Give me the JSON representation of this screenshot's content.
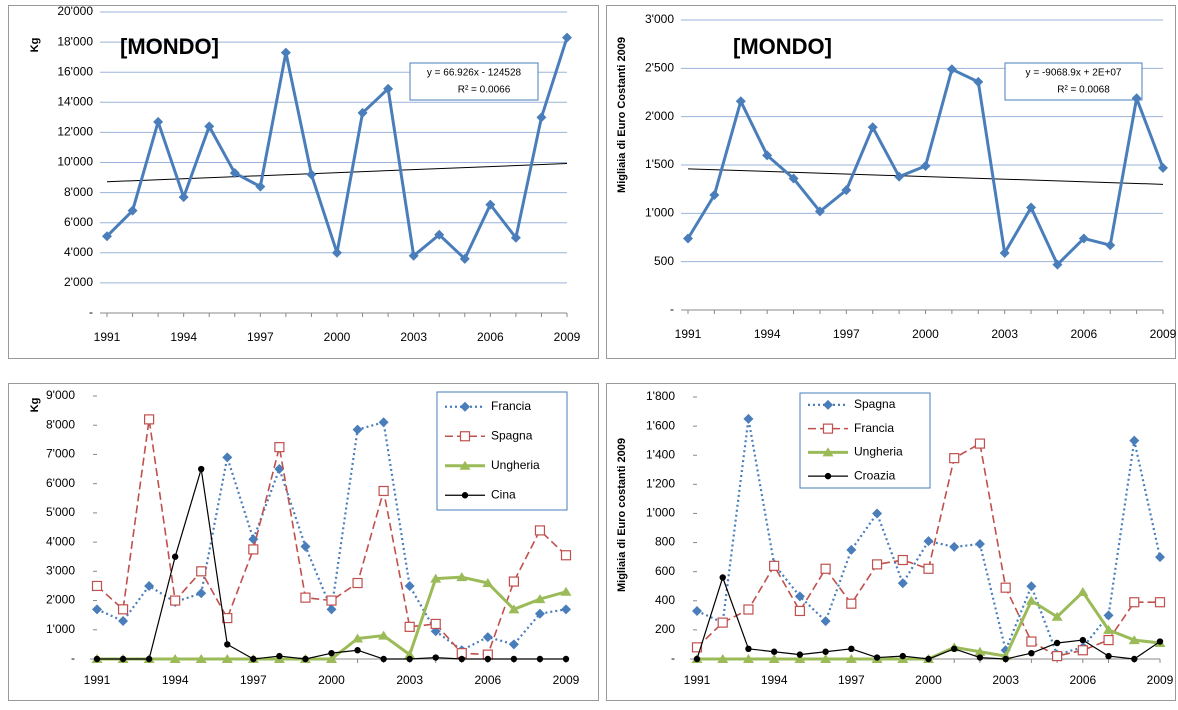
{
  "chart_data": [
    {
      "type": "line",
      "annotation": "[MONDO]",
      "y_label": "Kg",
      "categories": [
        "1991",
        null,
        null,
        "1994",
        null,
        null,
        "1997",
        null,
        null,
        "2000",
        null,
        null,
        "2003",
        null,
        null,
        "2006",
        null,
        null,
        "2009"
      ],
      "series": [
        {
          "color": "#4a7ebb",
          "marker": "diamond",
          "dash": "solid",
          "values": [
            5100,
            6800,
            12700,
            7700,
            12400,
            9300,
            8400,
            17300,
            9200,
            4000,
            13300,
            14900,
            3800,
            5200,
            3600,
            7200,
            5000,
            13000,
            18300
          ]
        }
      ],
      "trendline": {
        "label": "y = 66.926x - 124528",
        "r2_label": "R² = 0.0066",
        "start": 8720,
        "end": 9930
      },
      "ylim": [
        0,
        20000
      ],
      "yticks": [
        {
          "value": 0,
          "label": "-"
        },
        {
          "value": 2000,
          "label": "2'000"
        },
        {
          "value": 4000,
          "label": "4'000"
        },
        {
          "value": 6000,
          "label": "6'000"
        },
        {
          "value": 8000,
          "label": "8'000"
        },
        {
          "value": 10000,
          "label": "10'000"
        },
        {
          "value": 12000,
          "label": "12'000"
        },
        {
          "value": 14000,
          "label": "14'000"
        },
        {
          "value": 16000,
          "label": "16'000"
        },
        {
          "value": 18000,
          "label": "18'000"
        },
        {
          "value": 20000,
          "label": "20'000"
        }
      ],
      "grid": true
    },
    {
      "type": "line",
      "annotation": "[MONDO]",
      "y_label": "Migliaia  di Euro Costanti 2009",
      "categories": [
        "1991",
        null,
        null,
        "1994",
        null,
        null,
        "1997",
        null,
        null,
        "2000",
        null,
        null,
        "2003",
        null,
        null,
        "2006",
        null,
        null,
        "2009"
      ],
      "series": [
        {
          "color": "#4a7ebb",
          "marker": "diamond",
          "dash": "solid",
          "values": [
            740,
            1190,
            2160,
            1600,
            1360,
            1020,
            1240,
            1890,
            1380,
            1490,
            2490,
            2360,
            590,
            1060,
            470,
            740,
            670,
            2190,
            1470
          ]
        }
      ],
      "trendline": {
        "label": "y = -9068.9x + 2E+07",
        "r2_label": "R² = 0.0068",
        "start": 1460,
        "end": 1300
      },
      "ylim": [
        0,
        3000
      ],
      "yticks": [
        {
          "value": 0,
          "label": "-"
        },
        500,
        {
          "value": 1000,
          "label": "1'000"
        },
        {
          "value": 1500,
          "label": "1'500"
        },
        {
          "value": 2000,
          "label": "2'000"
        },
        {
          "value": 2500,
          "label": "2'500"
        },
        {
          "value": 3000,
          "label": "3'000"
        }
      ],
      "grid": true
    },
    {
      "type": "line",
      "y_label": "Kg",
      "categories": [
        "1991",
        null,
        null,
        "1994",
        null,
        null,
        "1997",
        null,
        null,
        "2000",
        null,
        null,
        "2003",
        null,
        null,
        "2006",
        null,
        null,
        "2009"
      ],
      "series": [
        {
          "name": "Francia",
          "color": "#4a7ebb",
          "marker": "diamond",
          "dash": "dotted",
          "values": [
            1700,
            1300,
            2500,
            1950,
            2250,
            6900,
            4100,
            6500,
            3850,
            1700,
            7850,
            8100,
            2500,
            950,
            300,
            750,
            500,
            1550,
            1700
          ]
        },
        {
          "name": "Spagna",
          "color": "#c0504d",
          "marker": "square-open",
          "dash": "dashed",
          "values": [
            2500,
            1700,
            8200,
            2000,
            3000,
            1400,
            3750,
            7250,
            2100,
            2000,
            2600,
            5750,
            1100,
            1200,
            200,
            150,
            2650,
            4400,
            3550
          ]
        },
        {
          "name": "Ungheria",
          "color": "#9bbb59",
          "marker": "triangle",
          "dash": "solid",
          "values": [
            0,
            0,
            0,
            0,
            0,
            0,
            0,
            0,
            0,
            0,
            700,
            800,
            150,
            2750,
            2800,
            2600,
            1700,
            2050,
            2300
          ]
        },
        {
          "name": "Cina",
          "color": "#000000",
          "marker": "circle",
          "dash": "thin",
          "values": [
            0,
            0,
            0,
            3500,
            6500,
            500,
            0,
            100,
            0,
            200,
            300,
            0,
            0,
            50,
            0,
            0,
            0,
            0,
            0
          ]
        }
      ],
      "legend": "upper right",
      "ylim": [
        0,
        9000
      ],
      "yticks": [
        {
          "value": 0,
          "label": "-"
        },
        {
          "value": 1000,
          "label": "1'000"
        },
        {
          "value": 2000,
          "label": "2'000"
        },
        {
          "value": 3000,
          "label": "3'000"
        },
        {
          "value": 4000,
          "label": "4'000"
        },
        {
          "value": 5000,
          "label": "5'000"
        },
        {
          "value": 6000,
          "label": "6'000"
        },
        {
          "value": 7000,
          "label": "7'000"
        },
        {
          "value": 8000,
          "label": "8'000"
        },
        {
          "value": 9000,
          "label": "9'000"
        }
      ],
      "grid": false
    },
    {
      "type": "line",
      "y_label": "Migliaia  di Euro costanti 2009",
      "categories": [
        "1991",
        null,
        null,
        "1994",
        null,
        null,
        "1997",
        null,
        null,
        "2000",
        null,
        null,
        "2003",
        null,
        null,
        "2006",
        null,
        null,
        "2009"
      ],
      "series": [
        {
          "name": "Spagna",
          "color": "#4a7ebb",
          "marker": "diamond",
          "dash": "dotted",
          "values": [
            330,
            250,
            1650,
            650,
            430,
            260,
            750,
            1000,
            520,
            810,
            770,
            790,
            60,
            500,
            30,
            80,
            300,
            1500,
            700
          ]
        },
        {
          "name": "Francia",
          "color": "#c0504d",
          "marker": "square-open",
          "dash": "dashed",
          "values": [
            80,
            250,
            340,
            640,
            330,
            620,
            380,
            650,
            680,
            620,
            1380,
            1480,
            490,
            120,
            20,
            60,
            130,
            390,
            390
          ]
        },
        {
          "name": "Ungheria",
          "color": "#9bbb59",
          "marker": "triangle",
          "dash": "solid",
          "values": [
            0,
            0,
            0,
            0,
            0,
            0,
            0,
            0,
            0,
            0,
            80,
            50,
            20,
            400,
            290,
            460,
            200,
            130,
            110
          ]
        },
        {
          "name": "Croazia",
          "color": "#000000",
          "marker": "circle",
          "dash": "thin",
          "values": [
            0,
            560,
            70,
            50,
            30,
            50,
            70,
            10,
            20,
            0,
            70,
            10,
            0,
            40,
            110,
            130,
            20,
            0,
            120
          ]
        }
      ],
      "legend": "upper left",
      "ylim": [
        0,
        1800
      ],
      "yticks": [
        {
          "value": 0,
          "label": "-"
        },
        200,
        400,
        600,
        800,
        {
          "value": 1000,
          "label": "1'000"
        },
        {
          "value": 1200,
          "label": "1'200"
        },
        {
          "value": 1400,
          "label": "1'400"
        },
        {
          "value": 1600,
          "label": "1'600"
        },
        {
          "value": 1800,
          "label": "1'800"
        }
      ],
      "grid": false
    }
  ]
}
